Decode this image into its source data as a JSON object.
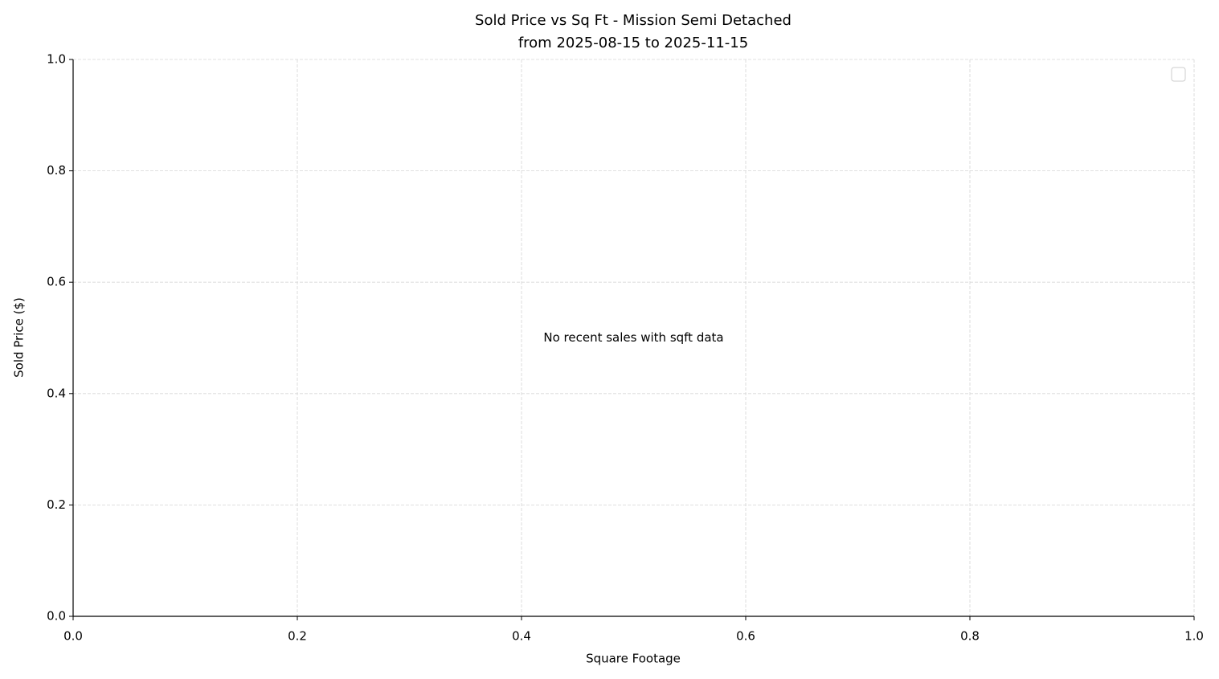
{
  "chart_data": {
    "type": "scatter",
    "title": "Sold Price vs Sq Ft - Mission Semi Detached",
    "subtitle": "from 2025-08-15 to 2025-11-15",
    "xlabel": "Square Footage",
    "ylabel": "Sold Price ($)",
    "annotation": "No recent sales with sqft data",
    "xlim": [
      0,
      1
    ],
    "ylim": [
      0,
      1
    ],
    "xticks": [
      {
        "value": 0,
        "label": "0.0"
      },
      0.2,
      0.4,
      0.6,
      0.8,
      {
        "value": 1,
        "label": "1.0"
      }
    ],
    "yticks": [
      {
        "value": 0,
        "label": "0.0"
      },
      0.2,
      0.4,
      0.6,
      0.8,
      {
        "value": 1,
        "label": "1.0"
      }
    ],
    "grid": true,
    "legend": "upper right"
  }
}
